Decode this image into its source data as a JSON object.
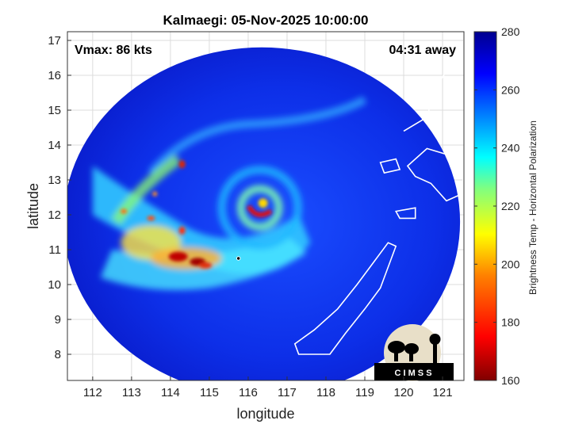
{
  "chart_data": {
    "type": "heatmap",
    "title": "Kalmaegi: 05-Nov-2025 10:00:00",
    "xlabel": "longitude",
    "ylabel": "latitude",
    "xlim": [
      111.35,
      121.55
    ],
    "ylim": [
      7.25,
      17.25
    ],
    "xticks": [
      112,
      113,
      114,
      115,
      116,
      117,
      118,
      119,
      120,
      121
    ],
    "yticks": [
      8,
      9,
      10,
      11,
      12,
      13,
      14,
      15,
      16,
      17
    ],
    "grid": true,
    "annotations": {
      "vmax": "Vmax: 86 kts",
      "time_away": "04:31 away"
    },
    "storm_center": {
      "lon": 116.3,
      "lat": 12.2
    },
    "best_track_marker": {
      "lon": 115.75,
      "lat": 10.75
    },
    "swath": {
      "center_lon": 116.35,
      "center_lat": 11.8,
      "radius_lon": 5.1,
      "radius_lat": 5.0
    },
    "colorbar": {
      "label": "Brightness Temp - Horizontal Polarization",
      "range": [
        160,
        280
      ],
      "ticks": [
        160,
        180,
        200,
        220,
        240,
        260,
        280
      ],
      "colormap": "jet",
      "colors": [
        "#800000",
        "#ff0000",
        "#ff8000",
        "#ffff00",
        "#80ff80",
        "#00ffff",
        "#0080ff",
        "#0000ff",
        "#00008f"
      ]
    },
    "logo_text": "C I M S S"
  }
}
